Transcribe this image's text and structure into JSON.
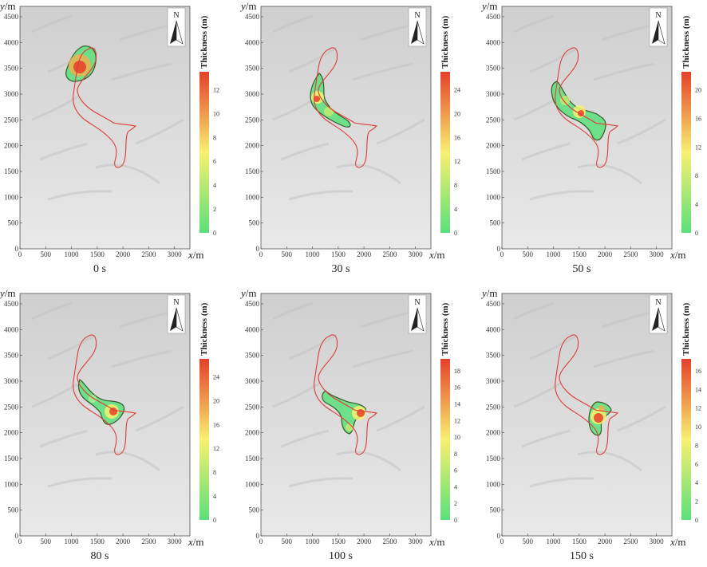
{
  "figure": {
    "y_axis_label": "y",
    "x_axis_label": "x",
    "unit": "/m",
    "colorbar_title": "Thickness (m)",
    "north_label": "N",
    "x_ticks": [
      "0",
      "500",
      "1000",
      "1500",
      "2000",
      "2500",
      "3000"
    ],
    "y_ticks": [
      "0",
      "500",
      "1000",
      "1500",
      "2000",
      "2500",
      "3000",
      "3500",
      "4000",
      "4500"
    ],
    "colors": {
      "boundary": "#e03a3a",
      "deposit_outline": "#3a5a2a",
      "scale_low": "#5be07a",
      "scale_mid": "#f8f070",
      "scale_high": "#e6402a",
      "terrain": "#d9d9d9"
    }
  },
  "panels": [
    {
      "time_label": "0 s",
      "colorbar_ticks": [
        "0",
        "2",
        "4",
        "6",
        "8",
        "10",
        "12"
      ]
    },
    {
      "time_label": "30 s",
      "colorbar_ticks": [
        "0",
        "4",
        "8",
        "12",
        "16",
        "20",
        "24"
      ]
    },
    {
      "time_label": "50 s",
      "colorbar_ticks": [
        "0",
        "4",
        "8",
        "12",
        "16",
        "20"
      ]
    },
    {
      "time_label": "80 s",
      "colorbar_ticks": [
        "0",
        "4",
        "8",
        "12",
        "16",
        "20",
        "24"
      ]
    },
    {
      "time_label": "100 s",
      "colorbar_ticks": [
        "0",
        "2",
        "4",
        "6",
        "8",
        "10",
        "12",
        "14",
        "16",
        "18"
      ]
    },
    {
      "time_label": "150 s",
      "colorbar_ticks": [
        "0",
        "2",
        "4",
        "6",
        "8",
        "10",
        "12",
        "14",
        "16"
      ]
    }
  ]
}
